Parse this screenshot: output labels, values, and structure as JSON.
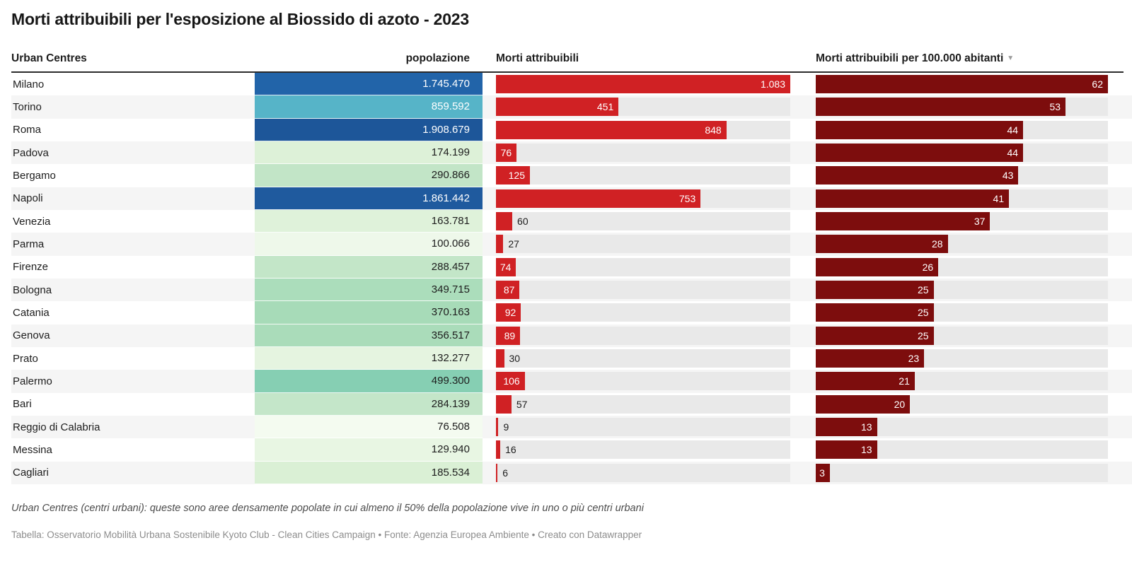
{
  "title": "Morti attribuibili per l'esposizione al Biossido di azoto - 2023",
  "columns": {
    "city": "Urban Centres",
    "population": "popolazione",
    "deaths": "Morti attribuibili",
    "rate": "Morti attribuibili per 100.000 abitanti"
  },
  "sort_icon": "▼",
  "colors": {
    "deaths_bar": "#d02124",
    "rate_bar": "#7d0d0d",
    "bar_track": "#e9e9e9",
    "zebra_row": "#f5f5f5",
    "header_rule": "#2b2b2b",
    "light_text": "#ffffff",
    "dark_text": "#1d1d1d"
  },
  "scales": {
    "deaths_max": 1083,
    "rate_max": 62
  },
  "rows": [
    {
      "city": "Milano",
      "population": "1.745.470",
      "pop_color": "#2264a9",
      "pop_text_light": true,
      "deaths": 1083,
      "deaths_label": "1.083",
      "deaths_label_pos": "in",
      "rate": 62,
      "rate_label": "62"
    },
    {
      "city": "Torino",
      "population": "859.592",
      "pop_color": "#56b4c8",
      "pop_text_light": true,
      "deaths": 451,
      "deaths_label": "451",
      "deaths_label_pos": "in",
      "rate": 53,
      "rate_label": "53"
    },
    {
      "city": "Roma",
      "population": "1.908.679",
      "pop_color": "#1d5699",
      "pop_text_light": true,
      "deaths": 848,
      "deaths_label": "848",
      "deaths_label_pos": "in",
      "rate": 44,
      "rate_label": "44"
    },
    {
      "city": "Padova",
      "population": "174.199",
      "pop_color": "#ddf1d8",
      "pop_text_light": false,
      "deaths": 76,
      "deaths_label": "76",
      "deaths_label_pos": "in",
      "rate": 44,
      "rate_label": "44"
    },
    {
      "city": "Bergamo",
      "population": "290.866",
      "pop_color": "#c2e5c7",
      "pop_text_light": false,
      "deaths": 125,
      "deaths_label": "125",
      "deaths_label_pos": "in",
      "rate": 43,
      "rate_label": "43"
    },
    {
      "city": "Napoli",
      "population": "1.861.442",
      "pop_color": "#1f5a9e",
      "pop_text_light": true,
      "deaths": 753,
      "deaths_label": "753",
      "deaths_label_pos": "in",
      "rate": 41,
      "rate_label": "41"
    },
    {
      "city": "Venezia",
      "population": "163.781",
      "pop_color": "#dff2da",
      "pop_text_light": false,
      "deaths": 60,
      "deaths_label": "60",
      "deaths_label_pos": "out",
      "rate": 37,
      "rate_label": "37"
    },
    {
      "city": "Parma",
      "population": "100.066",
      "pop_color": "#eef8ea",
      "pop_text_light": false,
      "deaths": 27,
      "deaths_label": "27",
      "deaths_label_pos": "out",
      "rate": 28,
      "rate_label": "28"
    },
    {
      "city": "Firenze",
      "population": "288.457",
      "pop_color": "#c3e6c8",
      "pop_text_light": false,
      "deaths": 74,
      "deaths_label": "74",
      "deaths_label_pos": "in",
      "rate": 26,
      "rate_label": "26"
    },
    {
      "city": "Bologna",
      "population": "349.715",
      "pop_color": "#abddbb",
      "pop_text_light": false,
      "deaths": 87,
      "deaths_label": "87",
      "deaths_label_pos": "in",
      "rate": 25,
      "rate_label": "25"
    },
    {
      "city": "Catania",
      "population": "370.163",
      "pop_color": "#a7dbb8",
      "pop_text_light": false,
      "deaths": 92,
      "deaths_label": "92",
      "deaths_label_pos": "in",
      "rate": 25,
      "rate_label": "25"
    },
    {
      "city": "Genova",
      "population": "356.517",
      "pop_color": "#aadcba",
      "pop_text_light": false,
      "deaths": 89,
      "deaths_label": "89",
      "deaths_label_pos": "in",
      "rate": 25,
      "rate_label": "25"
    },
    {
      "city": "Prato",
      "population": "132.277",
      "pop_color": "#e5f4e0",
      "pop_text_light": false,
      "deaths": 30,
      "deaths_label": "30",
      "deaths_label_pos": "out",
      "rate": 23,
      "rate_label": "23"
    },
    {
      "city": "Palermo",
      "population": "499.300",
      "pop_color": "#86cfb3",
      "pop_text_light": false,
      "deaths": 106,
      "deaths_label": "106",
      "deaths_label_pos": "in",
      "rate": 21,
      "rate_label": "21"
    },
    {
      "city": "Bari",
      "population": "284.139",
      "pop_color": "#c4e6c9",
      "pop_text_light": false,
      "deaths": 57,
      "deaths_label": "57",
      "deaths_label_pos": "out",
      "rate": 20,
      "rate_label": "20"
    },
    {
      "city": "Reggio di Calabria",
      "population": "76.508",
      "pop_color": "#f4fbf0",
      "pop_text_light": false,
      "deaths": 9,
      "deaths_label": "9",
      "deaths_label_pos": "out",
      "rate": 13,
      "rate_label": "13"
    },
    {
      "city": "Messina",
      "population": "129.940",
      "pop_color": "#e8f6e3",
      "pop_text_light": false,
      "deaths": 16,
      "deaths_label": "16",
      "deaths_label_pos": "out",
      "rate": 13,
      "rate_label": "13"
    },
    {
      "city": "Cagliari",
      "population": "185.534",
      "pop_color": "#daf0d5",
      "pop_text_light": false,
      "deaths": 6,
      "deaths_label": "6",
      "deaths_label_pos": "out",
      "rate": 3,
      "rate_label": "3"
    }
  ],
  "footnote": "Urban Centres (centri urbani): queste sono aree densamente popolate in cui almeno il 50% della popolazione vive in uno o più centri urbani",
  "source": "Tabella: Osservatorio Mobilità Urbana Sostenibile Kyoto Club - Clean Cities Campaign • Fonte: Agenzia Europea Ambiente • Creato con Datawrapper",
  "chart_data": {
    "type": "table",
    "title": "Morti attribuibili per l'esposizione al Biossido di azoto - 2023",
    "columns": [
      "Urban Centres",
      "popolazione",
      "Morti attribuibili",
      "Morti attribuibili per 100.000 abitanti"
    ],
    "sorted_by": "Morti attribuibili per 100.000 abitanti",
    "sort_direction": "desc",
    "categories": [
      "Milano",
      "Torino",
      "Roma",
      "Padova",
      "Bergamo",
      "Napoli",
      "Venezia",
      "Parma",
      "Firenze",
      "Bologna",
      "Catania",
      "Genova",
      "Prato",
      "Palermo",
      "Bari",
      "Reggio di Calabria",
      "Messina",
      "Cagliari"
    ],
    "series": [
      {
        "name": "popolazione",
        "values": [
          1745470,
          859592,
          1908679,
          174199,
          290866,
          1861442,
          163781,
          100066,
          288457,
          349715,
          370163,
          356517,
          132277,
          499300,
          284139,
          76508,
          129940,
          185534
        ]
      },
      {
        "name": "Morti attribuibili",
        "values": [
          1083,
          451,
          848,
          76,
          125,
          753,
          60,
          27,
          74,
          87,
          92,
          89,
          30,
          106,
          57,
          9,
          16,
          6
        ]
      },
      {
        "name": "Morti attribuibili per 100.000 abitanti",
        "values": [
          62,
          53,
          44,
          44,
          43,
          41,
          37,
          28,
          26,
          25,
          25,
          25,
          23,
          21,
          20,
          13,
          13,
          3
        ]
      }
    ],
    "bar_axis_max": {
      "Morti attribuibili": 1083,
      "Morti attribuibili per 100.000 abitanti": 62
    },
    "population_colormap": "green-to-blue sequential heatmap"
  }
}
